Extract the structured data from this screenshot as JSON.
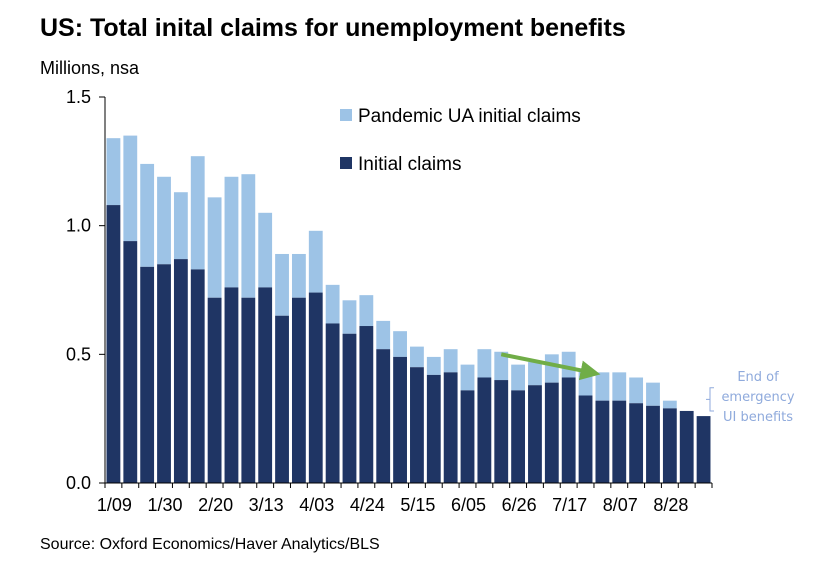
{
  "title": "US: Total inital claims for unemployment benefits",
  "units_label": "Millions, nsa",
  "source": "Source: Oxford Economics/Haver Analytics/BLS",
  "colors": {
    "initial": "#1f3564",
    "pandemic": "#9dc3e6",
    "arrow": "#70ad47",
    "annotation": "#8faadc",
    "axis": "#000000"
  },
  "annotation": {
    "lines": [
      "End of",
      "emergency",
      "UI benefits"
    ],
    "arrow_from_week": 23,
    "arrow_to_week": 28,
    "arrow_from_value": 0.5,
    "arrow_to_value": 0.43
  },
  "chart_data": {
    "type": "bar",
    "stacked": true,
    "ylim": [
      0,
      1.5
    ],
    "yticks": [
      "0.0",
      "0.5",
      "1.0",
      "1.5"
    ],
    "ytick_values": [
      0,
      0.5,
      1.0,
      1.5
    ],
    "grid": false,
    "legend_position": "top-right",
    "xtick_labels": [
      "1/09",
      "1/30",
      "2/20",
      "3/13",
      "4/03",
      "4/24",
      "5/15",
      "6/05",
      "6/26",
      "7/17",
      "8/07",
      "8/28"
    ],
    "xtick_every": 3,
    "series": [
      {
        "name": "Pandemic UA initial claims",
        "values": [
          0.26,
          0.41,
          0.4,
          0.34,
          0.26,
          0.44,
          0.39,
          0.43,
          0.48,
          0.29,
          0.24,
          0.17,
          0.24,
          0.15,
          0.13,
          0.12,
          0.11,
          0.1,
          0.08,
          0.07,
          0.09,
          0.1,
          0.11,
          0.11,
          0.1,
          0.09,
          0.11,
          0.1,
          0.1,
          0.11,
          0.11,
          0.1,
          0.09,
          0.03
        ]
      },
      {
        "name": "Initial claims",
        "values": [
          1.08,
          0.94,
          0.84,
          0.85,
          0.87,
          0.83,
          0.72,
          0.76,
          0.72,
          0.76,
          0.65,
          0.72,
          0.74,
          0.62,
          0.58,
          0.61,
          0.52,
          0.49,
          0.45,
          0.42,
          0.43,
          0.36,
          0.41,
          0.4,
          0.36,
          0.38,
          0.39,
          0.41,
          0.34,
          0.32,
          0.32,
          0.31,
          0.3,
          0.29,
          0.28,
          0.26
        ]
      }
    ]
  }
}
